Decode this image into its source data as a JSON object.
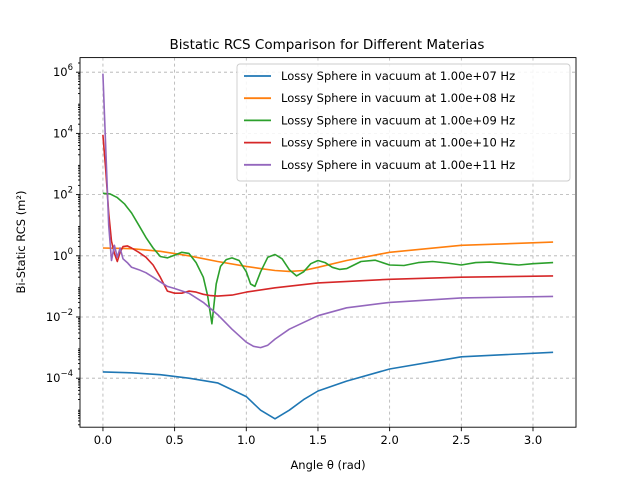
{
  "chart_data": {
    "type": "line",
    "title": "Bistatic RCS Comparison for Different Materias",
    "xlabel": "Angle θ (rad)",
    "ylabel": "Bi-Static RCS (m²)",
    "yscale": "log",
    "xlim": [
      -0.16,
      3.3
    ],
    "ylim": [
      2.5e-06,
      3000000
    ],
    "xticks": [
      0.0,
      0.5,
      1.0,
      1.5,
      2.0,
      2.5,
      3.0
    ],
    "xtick_labels": [
      "0.0",
      "0.5",
      "1.0",
      "1.5",
      "2.0",
      "2.5",
      "3.0"
    ],
    "yticks": [
      0.0001,
      0.01,
      1,
      100,
      10000,
      1000000
    ],
    "ytick_labels": [
      {
        "base": "10",
        "exp": "−4"
      },
      {
        "base": "10",
        "exp": "−2"
      },
      {
        "base": "10",
        "exp": "0"
      },
      {
        "base": "10",
        "exp": "2"
      },
      {
        "base": "10",
        "exp": "4"
      },
      {
        "base": "10",
        "exp": "6"
      }
    ],
    "grid": true,
    "legend_position": "top-right",
    "series": [
      {
        "name": "Lossy Sphere in vacuum at 1.00e+07 Hz",
        "color": "#1f77b4",
        "x": [
          0,
          0.2,
          0.4,
          0.6,
          0.8,
          1.0,
          1.1,
          1.2,
          1.3,
          1.4,
          1.5,
          1.7,
          2.0,
          2.5,
          3.14
        ],
        "y": [
          0.00016,
          0.00015,
          0.00013,
          0.0001,
          7e-05,
          2.5e-05,
          9e-06,
          4.7e-06,
          9e-06,
          2e-05,
          3.8e-05,
          8e-05,
          0.0002,
          0.0005,
          0.0007
        ]
      },
      {
        "name": "Lossy Sphere in vacuum at 1.00e+08 Hz",
        "color": "#ff7f0e",
        "x": [
          0,
          0.2,
          0.4,
          0.6,
          0.8,
          1.0,
          1.1,
          1.2,
          1.3,
          1.4,
          1.5,
          1.7,
          2.0,
          2.5,
          3.14
        ],
        "y": [
          1.8,
          1.7,
          1.4,
          1.0,
          0.65,
          0.45,
          0.38,
          0.33,
          0.31,
          0.33,
          0.42,
          0.7,
          1.3,
          2.2,
          2.8
        ]
      },
      {
        "name": "Lossy Sphere in vacuum at 1.00e+09 Hz",
        "color": "#2ca02c",
        "x": [
          0,
          0.05,
          0.1,
          0.15,
          0.2,
          0.25,
          0.3,
          0.35,
          0.4,
          0.45,
          0.5,
          0.55,
          0.6,
          0.65,
          0.7,
          0.73,
          0.76,
          0.79,
          0.82,
          0.86,
          0.9,
          0.95,
          1.0,
          1.03,
          1.06,
          1.1,
          1.15,
          1.2,
          1.25,
          1.3,
          1.35,
          1.4,
          1.45,
          1.5,
          1.55,
          1.6,
          1.65,
          1.7,
          1.8,
          1.9,
          2.0,
          2.1,
          2.2,
          2.3,
          2.4,
          2.5,
          2.6,
          2.7,
          2.8,
          2.9,
          3.0,
          3.14
        ],
        "y": [
          110,
          105,
          80,
          50,
          25,
          10,
          4,
          1.8,
          0.95,
          0.85,
          1.05,
          1.3,
          1.2,
          0.6,
          0.2,
          0.05,
          0.006,
          0.12,
          0.45,
          0.75,
          0.85,
          0.7,
          0.3,
          0.12,
          0.1,
          0.3,
          0.9,
          1.1,
          0.8,
          0.35,
          0.22,
          0.3,
          0.55,
          0.7,
          0.6,
          0.42,
          0.36,
          0.38,
          0.65,
          0.72,
          0.5,
          0.48,
          0.6,
          0.65,
          0.58,
          0.5,
          0.6,
          0.62,
          0.55,
          0.5,
          0.55,
          0.6
        ]
      },
      {
        "name": "Lossy Sphere in vacuum at 1.00e+10 Hz",
        "color": "#d62728",
        "x": [
          0,
          0.02,
          0.04,
          0.06,
          0.08,
          0.1,
          0.12,
          0.14,
          0.17,
          0.2,
          0.25,
          0.3,
          0.35,
          0.4,
          0.45,
          0.5,
          0.55,
          0.6,
          0.65,
          0.7,
          0.75,
          0.8,
          0.9,
          1.0,
          1.2,
          1.5,
          2.0,
          2.5,
          3.14
        ],
        "y": [
          9000,
          600,
          25,
          3,
          1.2,
          0.65,
          1.3,
          2.0,
          2.1,
          1.8,
          1.3,
          0.9,
          0.5,
          0.2,
          0.07,
          0.06,
          0.06,
          0.07,
          0.065,
          0.055,
          0.05,
          0.048,
          0.052,
          0.065,
          0.09,
          0.13,
          0.17,
          0.2,
          0.22
        ]
      },
      {
        "name": "Lossy Sphere in vacuum at 1.00e+11 Hz",
        "color": "#9467bd",
        "x": [
          0,
          0.02,
          0.04,
          0.06,
          0.08,
          0.1,
          0.12,
          0.14,
          0.17,
          0.2,
          0.25,
          0.3,
          0.35,
          0.4,
          0.45,
          0.5,
          0.6,
          0.7,
          0.8,
          0.9,
          1.0,
          1.05,
          1.1,
          1.15,
          1.2,
          1.3,
          1.5,
          1.7,
          2.0,
          2.5,
          3.14
        ],
        "y": [
          900000,
          3000,
          10,
          0.7,
          2.2,
          0.9,
          1.8,
          0.8,
          0.6,
          0.42,
          0.35,
          0.28,
          0.2,
          0.14,
          0.1,
          0.085,
          0.06,
          0.03,
          0.012,
          0.004,
          0.0015,
          0.0011,
          0.001,
          0.0012,
          0.0019,
          0.004,
          0.011,
          0.02,
          0.03,
          0.042,
          0.047
        ]
      }
    ]
  }
}
